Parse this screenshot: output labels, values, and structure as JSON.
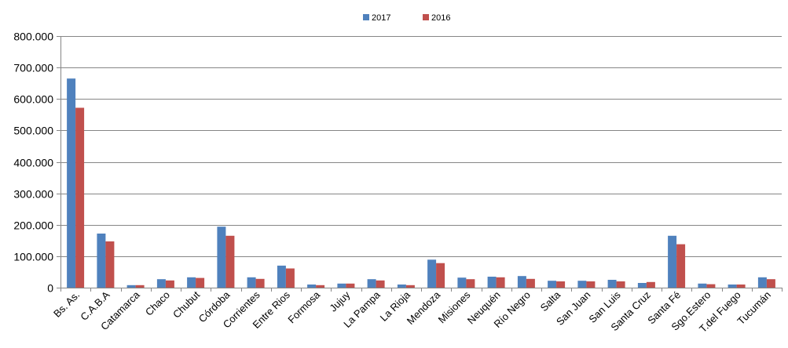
{
  "chart_data": {
    "type": "bar",
    "title": "",
    "xlabel": "",
    "ylabel": "",
    "ylim": [
      0,
      800000
    ],
    "yticks": [
      "0",
      "100.000",
      "200.000",
      "300.000",
      "400.000",
      "500.000",
      "600.000",
      "700.000",
      "800.000"
    ],
    "yticks_values": [
      0,
      100000,
      200000,
      300000,
      400000,
      500000,
      600000,
      700000,
      800000
    ],
    "grid": true,
    "legend_position": "top-center",
    "categories": [
      "Bs. As.",
      "C.A.B.A",
      "Catamarca",
      "Chaco",
      "Chubut",
      "Córdoba",
      "Corrientes",
      "Entre Rios",
      "Formosa",
      "Jujuy",
      "La Pampa",
      "La Rioja",
      "Mendoza",
      "Misiones",
      "Neuquén",
      "Río Negro",
      "Salta",
      "San Juan",
      "San Luis",
      "Santa Cruz",
      "Santa Fé",
      "Sgo.Estero",
      "T.del Fuego",
      "Tucumán"
    ],
    "series": [
      {
        "name": "2017",
        "color": "#4f81bd",
        "values": [
          665000,
          172000,
          8000,
          27000,
          33000,
          194000,
          33000,
          70000,
          10000,
          13000,
          27000,
          10000,
          89000,
          32000,
          35000,
          37000,
          22000,
          22000,
          25000,
          15000,
          165000,
          13000,
          10000,
          33000
        ]
      },
      {
        "name": "2016",
        "color": "#c0504d",
        "values": [
          572000,
          147000,
          8000,
          23000,
          31000,
          165000,
          28000,
          61000,
          8000,
          13000,
          23000,
          8000,
          78000,
          27000,
          33000,
          28000,
          20000,
          20000,
          20000,
          18000,
          138000,
          11000,
          10000,
          27000
        ]
      }
    ]
  }
}
